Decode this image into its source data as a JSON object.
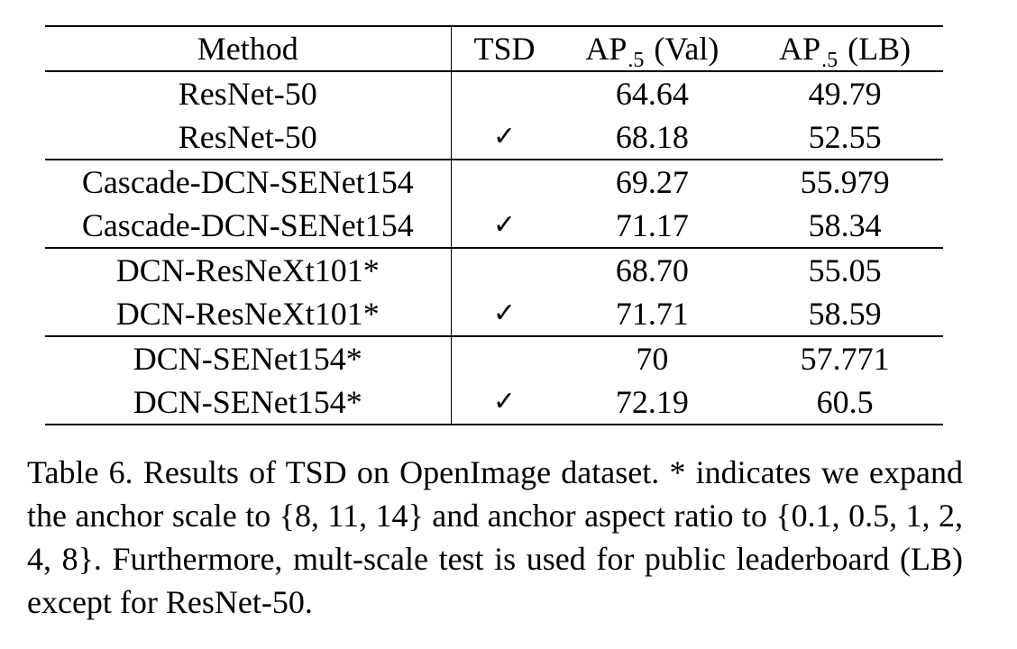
{
  "table": {
    "headers": {
      "method": "Method",
      "tsd": "TSD",
      "ap_val_prefix": "AP",
      "ap_val_sub": ".5",
      "ap_val_suffix": "(Val)",
      "ap_lb_prefix": "AP",
      "ap_lb_sub": ".5",
      "ap_lb_suffix": "(LB)"
    },
    "check_glyph": "✓",
    "rows": [
      {
        "method": "ResNet-50",
        "tsd": "",
        "ap_val": "64.64",
        "ap_lb": "49.79",
        "bold": false
      },
      {
        "method": "ResNet-50",
        "tsd": "✓",
        "ap_val": "68.18",
        "ap_lb": "52.55",
        "bold": true
      },
      {
        "method": "Cascade-DCN-SENet154",
        "tsd": "",
        "ap_val": "69.27",
        "ap_lb": "55.979",
        "bold": false
      },
      {
        "method": "Cascade-DCN-SENet154",
        "tsd": "✓",
        "ap_val": "71.17",
        "ap_lb": "58.34",
        "bold": true
      },
      {
        "method": "DCN-ResNeXt101*",
        "tsd": "",
        "ap_val": "68.70",
        "ap_lb": "55.05",
        "bold": false
      },
      {
        "method": "DCN-ResNeXt101*",
        "tsd": "✓",
        "ap_val": "71.71",
        "ap_lb": "58.59",
        "bold": true
      },
      {
        "method": "DCN-SENet154*",
        "tsd": "",
        "ap_val": "70",
        "ap_lb": "57.771",
        "bold": false
      },
      {
        "method": "DCN-SENet154*",
        "tsd": "✓",
        "ap_val": "72.19",
        "ap_lb": "60.5",
        "bold": true
      }
    ]
  },
  "caption": "Table 6. Results of TSD on OpenImage dataset. * indicates we expand the anchor scale to {8, 11, 14} and anchor aspect ratio to {0.1, 0.5, 1, 2, 4, 8}. Furthermore, mult-scale test is used for public leaderboard (LB) except for ResNet-50."
}
